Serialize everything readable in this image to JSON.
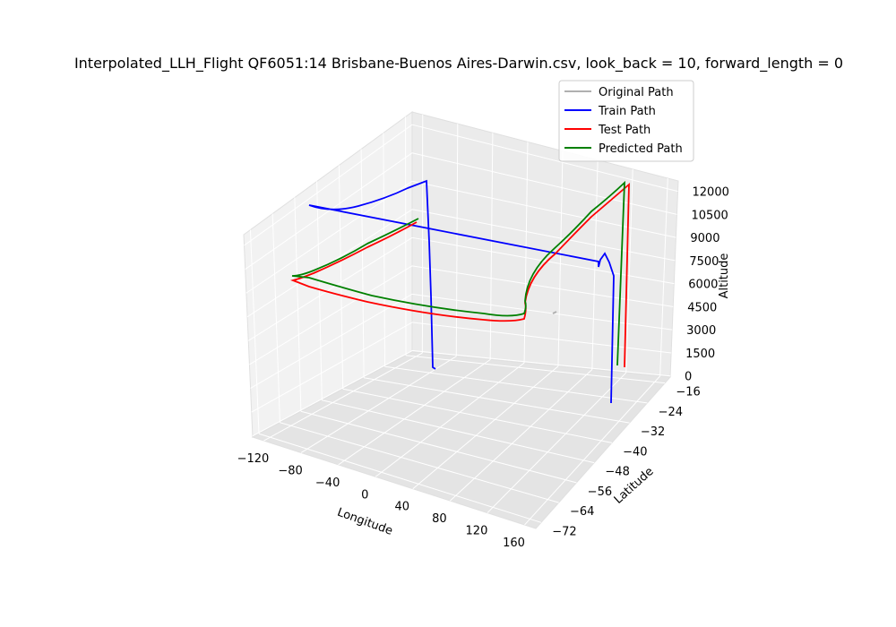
{
  "chart_data": {
    "type": "line",
    "title": "Interpolated_LLH_Flight QF6051:14 Brisbane-Buenos Aires-Darwin.csv, look_back = 10, forward_length = 0",
    "xlabel": "Longitude",
    "ylabel": "Latitude",
    "zlabel": "Altitude",
    "xticks": [
      "−120",
      "−80",
      "−40",
      "0",
      "40",
      "80",
      "120",
      "160"
    ],
    "yticks": [
      "−72",
      "−64",
      "−56",
      "−48",
      "−40",
      "−32",
      "−24",
      "−16"
    ],
    "zticks": [
      "0",
      "1500",
      "3000",
      "4500",
      "6000",
      "7500",
      "9000",
      "10500",
      "12000"
    ],
    "grid": true,
    "legend_position": "top-right",
    "series": [
      {
        "name": "Original Path",
        "color": "#b0b0b0"
      },
      {
        "name": "Train Path",
        "color": "#0000ff"
      },
      {
        "name": "Test Path",
        "color": "#ff0000"
      },
      {
        "name": "Predicted Path",
        "color": "#008000"
      }
    ]
  }
}
